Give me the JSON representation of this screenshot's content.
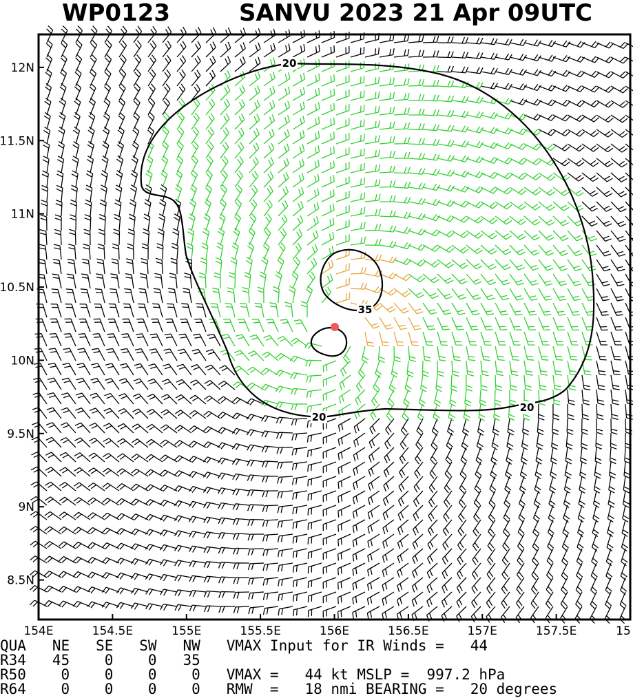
{
  "map": {
    "title_left": "WP0123",
    "title_right": "SANVU 2023 21 Apr 09UTC",
    "lon_range": [
      154,
      158
    ],
    "lat_range": [
      8.23,
      12.225
    ],
    "lon_ticks": [
      {
        "value": 154,
        "label": "154E"
      },
      {
        "value": 154.5,
        "label": "154.5E"
      },
      {
        "value": 155,
        "label": "155E"
      },
      {
        "value": 155.5,
        "label": "155.5E"
      },
      {
        "value": 156,
        "label": "156E"
      },
      {
        "value": 156.5,
        "label": "156.5E"
      },
      {
        "value": 157,
        "label": "157E"
      },
      {
        "value": 157.5,
        "label": "157.5E"
      },
      {
        "value": 158,
        "label": "15"
      }
    ],
    "lat_ticks": [
      {
        "value": 12,
        "label": "12N"
      },
      {
        "value": 11.5,
        "label": "11.5N"
      },
      {
        "value": 11,
        "label": "11N"
      },
      {
        "value": 10.5,
        "label": "10.5N"
      },
      {
        "value": 10,
        "label": "10N"
      },
      {
        "value": 9.5,
        "label": "9.5N"
      },
      {
        "value": 9,
        "label": "9N"
      },
      {
        "value": 8.5,
        "label": "8.5N"
      }
    ],
    "contour_labels": [
      "20",
      "20",
      "20",
      "35"
    ],
    "footer_lines": [
      "QUA   NE   SE   SW   NW   VMAX Input for IR Winds =   44",
      "R34   45    0    0   35",
      "R50    0    0    0    0   VMAX =   44 kt MSLP =  997.2 hPa",
      "R64    0    0    0    0   RMW  =   18 nmi BEARING =   20 degrees"
    ]
  }
}
